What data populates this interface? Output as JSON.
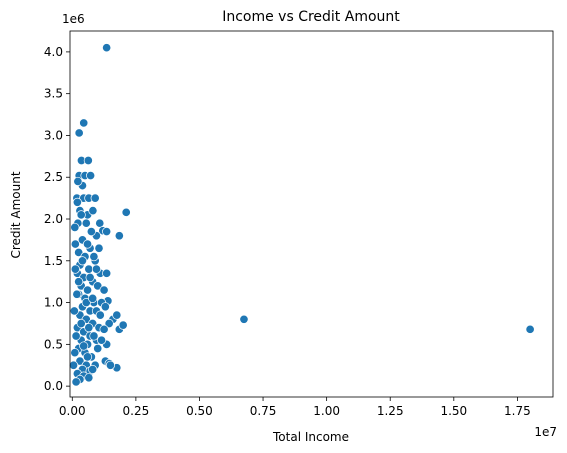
{
  "chart_data": {
    "type": "scatter",
    "title": "Income vs Credit Amount",
    "xlabel": "Total Income",
    "ylabel": "Credit Amount",
    "x_offset_label": "1e7",
    "y_offset_label": "1e6",
    "xlim": [
      -0.09,
      18.9
    ],
    "ylim": [
      -0.13,
      4.25
    ],
    "x_unit_multiplier": 1000000,
    "y_unit_multiplier": 1000000,
    "x_ticks": [
      0.0,
      2.5,
      5.0,
      7.5,
      10.0,
      12.5,
      15.0,
      17.5
    ],
    "x_tick_labels": [
      "0.00",
      "0.25",
      "0.50",
      "0.75",
      "1.00",
      "1.25",
      "1.50",
      "1.75"
    ],
    "y_ticks": [
      0.0,
      0.5,
      1.0,
      1.5,
      2.0,
      2.5,
      3.0,
      3.5,
      4.0
    ],
    "y_tick_labels": [
      "0.0",
      "0.5",
      "1.0",
      "1.5",
      "2.0",
      "2.5",
      "3.0",
      "3.5",
      "4.0"
    ],
    "grid": false,
    "marker_color": "#1f77b4",
    "series": [
      {
        "points": [
          [
            1.35,
            4.05
          ],
          [
            0.45,
            3.15
          ],
          [
            0.27,
            3.03
          ],
          [
            0.36,
            2.7
          ],
          [
            0.63,
            2.7
          ],
          [
            0.27,
            2.52
          ],
          [
            0.5,
            2.52
          ],
          [
            0.72,
            2.52
          ],
          [
            0.4,
            2.4
          ],
          [
            0.18,
            2.25
          ],
          [
            0.45,
            2.25
          ],
          [
            0.65,
            2.25
          ],
          [
            0.9,
            2.25
          ],
          [
            0.3,
            2.1
          ],
          [
            0.6,
            2.05
          ],
          [
            0.81,
            2.1
          ],
          [
            1.08,
            1.95
          ],
          [
            2.12,
            2.08
          ],
          [
            1.2,
            1.86
          ],
          [
            1.35,
            1.85
          ],
          [
            0.95,
            1.8
          ],
          [
            1.85,
            1.8
          ],
          [
            0.22,
            1.95
          ],
          [
            0.4,
            1.75
          ],
          [
            0.7,
            1.65
          ],
          [
            0.25,
            1.6
          ],
          [
            0.5,
            1.55
          ],
          [
            0.9,
            1.5
          ],
          [
            0.3,
            1.45
          ],
          [
            0.65,
            1.4
          ],
          [
            1.1,
            1.35
          ],
          [
            1.35,
            1.35
          ],
          [
            0.2,
            1.35
          ],
          [
            0.45,
            1.3
          ],
          [
            0.8,
            1.25
          ],
          [
            1.0,
            1.2
          ],
          [
            0.35,
            1.2
          ],
          [
            0.6,
            1.15
          ],
          [
            1.25,
            1.15
          ],
          [
            1.4,
            1.02
          ],
          [
            0.25,
            1.1
          ],
          [
            0.5,
            1.05
          ],
          [
            0.85,
            1.0
          ],
          [
            1.15,
            1.0
          ],
          [
            0.4,
            0.95
          ],
          [
            0.7,
            0.9
          ],
          [
            0.95,
            0.9
          ],
          [
            1.3,
            0.95
          ],
          [
            1.6,
            0.8
          ],
          [
            1.75,
            0.85
          ],
          [
            1.45,
            0.75
          ],
          [
            1.85,
            0.68
          ],
          [
            2.0,
            0.73
          ],
          [
            6.75,
            0.8
          ],
          [
            18.0,
            0.68
          ],
          [
            0.3,
            0.85
          ],
          [
            0.55,
            0.8
          ],
          [
            0.8,
            0.75
          ],
          [
            1.05,
            0.7
          ],
          [
            1.25,
            0.68
          ],
          [
            0.2,
            0.7
          ],
          [
            0.45,
            0.65
          ],
          [
            0.7,
            0.6
          ],
          [
            0.95,
            0.55
          ],
          [
            0.35,
            0.55
          ],
          [
            0.6,
            0.5
          ],
          [
            1.0,
            0.45
          ],
          [
            1.35,
            0.5
          ],
          [
            0.25,
            0.45
          ],
          [
            0.5,
            0.4
          ],
          [
            0.75,
            0.35
          ],
          [
            0.3,
            0.3
          ],
          [
            0.55,
            0.25
          ],
          [
            0.9,
            0.25
          ],
          [
            1.3,
            0.3
          ],
          [
            1.45,
            0.27
          ],
          [
            1.75,
            0.22
          ],
          [
            1.5,
            0.25
          ],
          [
            0.4,
            0.2
          ],
          [
            0.7,
            0.18
          ],
          [
            0.2,
            0.15
          ],
          [
            0.45,
            0.12
          ],
          [
            0.65,
            0.1
          ],
          [
            0.3,
            0.08
          ],
          [
            0.15,
            0.05
          ],
          [
            0.1,
            0.4
          ],
          [
            0.08,
            0.9
          ],
          [
            0.12,
            1.4
          ],
          [
            0.1,
            1.9
          ],
          [
            0.05,
            0.25
          ],
          [
            0.15,
            0.6
          ],
          [
            0.18,
            1.1
          ],
          [
            0.12,
            1.7
          ],
          [
            0.2,
            2.2
          ],
          [
            0.22,
            2.45
          ],
          [
            0.55,
            1.95
          ],
          [
            0.75,
            1.85
          ],
          [
            0.85,
            1.55
          ],
          [
            1.05,
            1.65
          ],
          [
            0.35,
            2.05
          ],
          [
            0.6,
            1.7
          ],
          [
            0.4,
            1.5
          ],
          [
            0.7,
            1.3
          ],
          [
            0.95,
            1.4
          ],
          [
            0.25,
            1.25
          ],
          [
            0.55,
            1.0
          ],
          [
            0.8,
            1.05
          ],
          [
            1.1,
            0.85
          ],
          [
            0.35,
            0.75
          ],
          [
            0.65,
            0.7
          ],
          [
            0.85,
            0.6
          ],
          [
            1.15,
            0.55
          ],
          [
            0.45,
            0.48
          ],
          [
            0.6,
            0.35
          ],
          [
            0.8,
            0.2
          ]
        ]
      }
    ]
  }
}
